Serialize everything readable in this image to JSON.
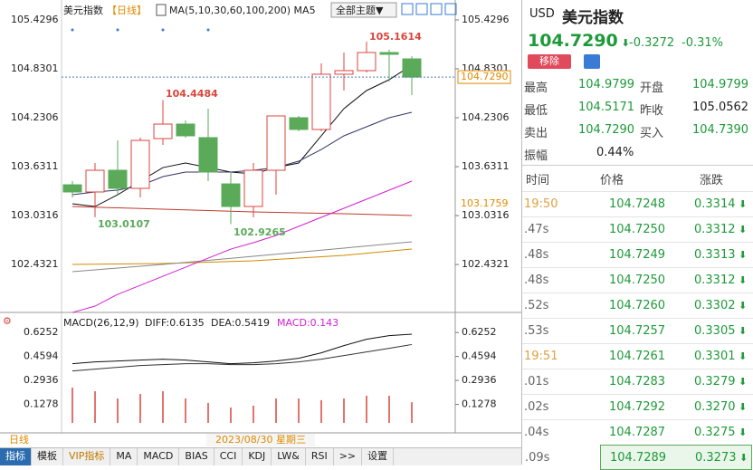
{
  "header": {
    "title": "美元指数",
    "period": "【日线】",
    "ma_legend": "MA(5,10,30,60,100,200) MA5",
    "theme": "全部主题▼"
  },
  "chart_data": [
    {
      "type": "candlestick",
      "ylim": [
        101.9,
        105.585
      ],
      "yticks": [
        105.4296,
        104.8301,
        104.2306,
        103.6311,
        103.0316,
        102.4321
      ],
      "open": [
        103.409,
        103.321,
        103.587,
        103.365,
        103.975,
        104.153,
        103.987,
        103.42,
        103.143,
        103.587,
        104.231,
        104.087,
        104.764,
        104.808,
        105.03,
        104.952
      ],
      "high": [
        103.454,
        103.676,
        103.953,
        103.987,
        104.4484,
        104.198,
        104.342,
        103.565,
        103.676,
        104.253,
        104.253,
        104.897,
        105.03,
        105.1614,
        105.063,
        104.986
      ],
      "low": [
        103.254,
        103.0107,
        103.287,
        103.254,
        103.898,
        103.987,
        103.454,
        102.9265,
        103.01,
        103.287,
        104.064,
        104.064,
        104.564,
        104.786,
        104.675,
        104.508
      ],
      "close": [
        103.321,
        103.587,
        103.365,
        103.953,
        104.153,
        104.009,
        103.565,
        103.143,
        103.587,
        104.253,
        104.087,
        104.764,
        104.808,
        105.03,
        105.008,
        104.729
      ],
      "series": [
        {
          "name": "MA5",
          "color": "#111111",
          "values": [
            103.176,
            103.143,
            103.287,
            103.454,
            103.62,
            103.676,
            103.62,
            103.565,
            103.543,
            103.62,
            103.676,
            104.009,
            104.342,
            104.564,
            104.697,
            104.875
          ]
        },
        {
          "name": "MA10",
          "color": "#333366",
          "values": [
            103.287,
            103.321,
            103.343,
            103.398,
            103.509,
            103.565,
            103.565,
            103.565,
            103.587,
            103.62,
            103.698,
            103.842,
            104.009,
            104.12,
            104.231,
            104.298
          ]
        },
        {
          "name": "MA30",
          "color": "#d21fd2",
          "values": [
            101.844,
            101.922,
            102.066,
            102.177,
            102.288,
            102.399,
            102.51,
            102.621,
            102.699,
            102.788,
            102.899,
            103.01,
            103.121,
            103.232,
            103.343,
            103.454
          ]
        }
      ],
      "annotations": [
        "105.1614",
        "104.4484",
        "103.0107",
        "102.9265"
      ],
      "price_tag": {
        "value": 104.729,
        "label": "104.7290"
      },
      "level_tag": 103.1759
    },
    {
      "type": "macd",
      "title": "MACD(26,12,9)",
      "diff_label": "DIFF:0.6135",
      "dea_label": "DEA:0.5419",
      "macd_label": "MACD:0.143",
      "ylim": [
        -0.019,
        0.72
      ],
      "yticks": [
        0.6252,
        0.4594,
        0.2936,
        0.1278
      ],
      "series": [
        {
          "name": "DIFF",
          "color": "#111111",
          "values": [
            0.4093,
            0.4218,
            0.4281,
            0.4344,
            0.4406,
            0.4344,
            0.4218,
            0.4093,
            0.4156,
            0.4281,
            0.4469,
            0.4844,
            0.5345,
            0.5783,
            0.6034,
            0.6135
          ]
        },
        {
          "name": "DEA",
          "color": "#333333",
          "values": [
            0.3592,
            0.3718,
            0.3843,
            0.3968,
            0.4031,
            0.4093,
            0.4093,
            0.4031,
            0.4031,
            0.4093,
            0.4218,
            0.4406,
            0.4657,
            0.4907,
            0.5157,
            0.5419
          ]
        }
      ],
      "bars": {
        "color": "#d9453c",
        "values": [
          0.244,
          0.219,
          0.169,
          0.2,
          0.219,
          0.169,
          0.138,
          0.106,
          0.119,
          0.169,
          0.169,
          0.157,
          0.169,
          0.188,
          0.188,
          0.143
        ]
      }
    }
  ],
  "footer": {
    "period": "日线",
    "date": "2023/08/30 星期三"
  },
  "toolbar": [
    "指标",
    "模板",
    "VIP指标",
    "MA",
    "MACD",
    "BIAS",
    "CCI",
    "KDJ",
    "LW&",
    "RSI",
    ">>",
    "设置"
  ],
  "quote": {
    "code": "USD",
    "name": "美元指数",
    "price": "104.7290",
    "change": "-0.3272",
    "pct": "-0.31%",
    "remove": "移除",
    "stats": [
      [
        "最高",
        "104.9799",
        "开盘",
        "104.9799"
      ],
      [
        "最低",
        "104.5171",
        "昨收",
        "105.0562"
      ],
      [
        "卖出",
        "104.7290",
        "买入",
        "104.7390"
      ],
      [
        "振幅",
        "0.44%"
      ]
    ]
  },
  "ticks": {
    "header": [
      "时间",
      "价格",
      "涨跌"
    ],
    "rows": [
      [
        "19:50",
        "104.7248",
        "0.3314"
      ],
      [
        ".47s",
        "104.7250",
        "0.3312"
      ],
      [
        ".48s",
        "104.7249",
        "0.3313"
      ],
      [
        ".48s",
        "104.7250",
        "0.3312"
      ],
      [
        ".52s",
        "104.7260",
        "0.3302"
      ],
      [
        ".53s",
        "104.7257",
        "0.3305"
      ],
      [
        "19:51",
        "104.7261",
        "0.3301"
      ],
      [
        ".01s",
        "104.7283",
        "0.3279"
      ],
      [
        ".02s",
        "104.7292",
        "0.3270"
      ],
      [
        ".04s",
        "104.7287",
        "0.3275"
      ],
      [
        ".09s",
        "104.7289",
        "0.3273"
      ]
    ]
  }
}
